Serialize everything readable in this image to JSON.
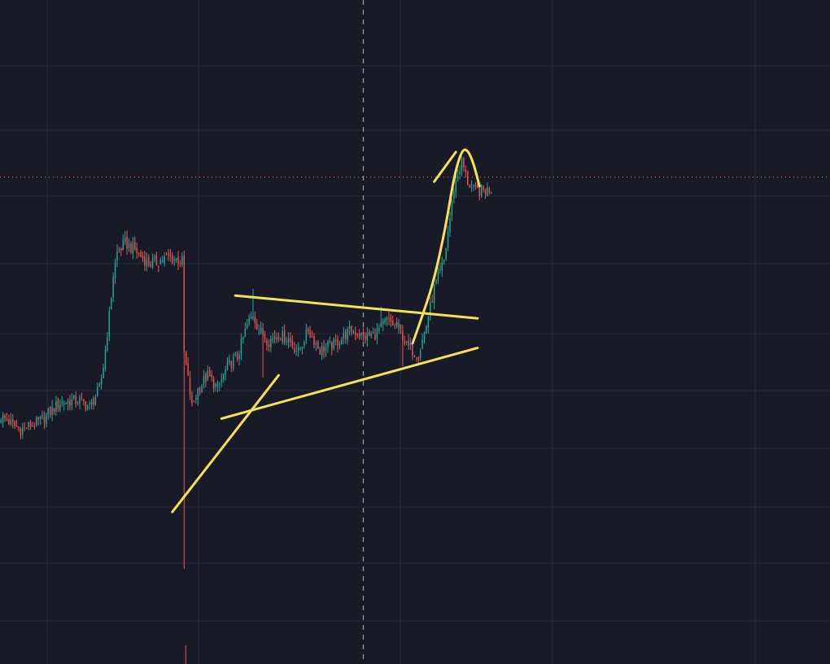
{
  "colors": {
    "background": "#181b27",
    "grid": "#262a38",
    "up": "#26a69a",
    "down": "#ef5350",
    "drawing": "#f5e356",
    "crosshair": "#9598a1",
    "last_price_line": "#e0524f"
  },
  "chart_data": {
    "type": "candlestick",
    "title": "",
    "xlabel": "",
    "ylabel": "",
    "bars": 250,
    "ylim": [
      0,
      100
    ],
    "grid": true,
    "crosshair_bar": 184,
    "last_price": 86.5,
    "anchors": [
      [
        0,
        34.0
      ],
      [
        10,
        31.0
      ],
      [
        20,
        33.0
      ],
      [
        30,
        37.0
      ],
      [
        40,
        37.5
      ],
      [
        45,
        36.0
      ],
      [
        50,
        40.0
      ],
      [
        52,
        45.0
      ],
      [
        55,
        56.0
      ],
      [
        57,
        65.0
      ],
      [
        59,
        70.0
      ],
      [
        63,
        72.0
      ],
      [
        68,
        70.5
      ],
      [
        75,
        67.5
      ],
      [
        80,
        68.0
      ],
      [
        85,
        69.0
      ],
      [
        92,
        68.0
      ],
      [
        93,
        48.0
      ],
      [
        97,
        36.0
      ],
      [
        100,
        40.0
      ],
      [
        105,
        43.0
      ],
      [
        110,
        40.0
      ],
      [
        115,
        45.0
      ],
      [
        120,
        47.0
      ],
      [
        125,
        54.0
      ],
      [
        128,
        56.5
      ],
      [
        131,
        53.0
      ],
      [
        136,
        50.5
      ],
      [
        141,
        52.0
      ],
      [
        146,
        51.0
      ],
      [
        151,
        48.0
      ],
      [
        156,
        53.0
      ],
      [
        162,
        48.5
      ],
      [
        170,
        50.0
      ],
      [
        178,
        53.0
      ],
      [
        184,
        51.5
      ],
      [
        190,
        52.0
      ],
      [
        196,
        55.0
      ],
      [
        202,
        53.5
      ],
      [
        206,
        49.5
      ],
      [
        212,
        47.5
      ],
      [
        216,
        54.0
      ],
      [
        220,
        62.0
      ],
      [
        225,
        68.0
      ],
      [
        230,
        84.0
      ],
      [
        234,
        90.0
      ],
      [
        237,
        85.5
      ],
      [
        240,
        83.5
      ],
      [
        246,
        83.5
      ],
      [
        249,
        84.0
      ]
    ],
    "wicks": [
      {
        "bar": 93,
        "low": 0.5
      },
      {
        "bar": 128,
        "high": 62.0
      },
      {
        "bar": 133,
        "low": 42.5
      },
      {
        "bar": 193,
        "high": 58.0
      },
      {
        "bar": 204,
        "low": 45.0
      }
    ],
    "drawings": [
      {
        "type": "trendline",
        "name": "descending-resistance",
        "from": [
          119,
          60.5
        ],
        "to": [
          242,
          55.5
        ]
      },
      {
        "type": "trendline",
        "name": "ascending-support",
        "from": [
          112,
          33.5
        ],
        "to": [
          242,
          49.0
        ]
      },
      {
        "type": "trendline",
        "name": "steep-trendline",
        "from": [
          87,
          13.0
        ],
        "to": [
          141,
          43.0
        ]
      },
      {
        "type": "curve",
        "name": "projection-arrow",
        "points": [
          [
            209,
            50.0
          ],
          [
            214,
            56.0
          ],
          [
            220,
            64.0
          ],
          [
            226,
            76.0
          ],
          [
            230,
            86.5
          ],
          [
            234,
            92.5
          ],
          [
            237,
            92.5
          ],
          [
            240,
            89.5
          ],
          [
            243,
            84.5
          ]
        ]
      },
      {
        "type": "line",
        "name": "arrowhead-left-stroke",
        "from": [
          220,
          85.5
        ],
        "to": [
          231,
          92.0
        ]
      }
    ]
  }
}
